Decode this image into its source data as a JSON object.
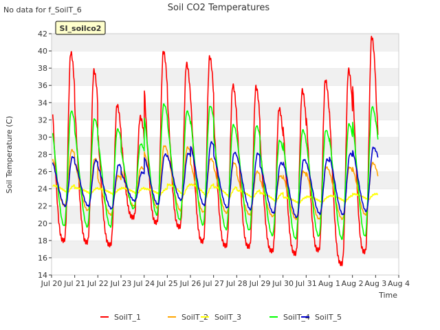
{
  "nodata_note": "No data for f_SoilT_6",
  "site_badge": "SI_soilco2",
  "chart_data": {
    "type": "line",
    "title": "Soil CO2 Temperatures",
    "xlabel": "Time",
    "ylabel": "Soil Temperature (C)",
    "ylim": [
      14,
      42
    ],
    "yticks": [
      14,
      16,
      18,
      20,
      22,
      24,
      26,
      28,
      30,
      32,
      34,
      36,
      38,
      40,
      42
    ],
    "xlim": [
      0,
      15
    ],
    "xticks": [
      0,
      1,
      2,
      3,
      4,
      5,
      6,
      7,
      8,
      9,
      10,
      11,
      12,
      13,
      14,
      15
    ],
    "xtick_labels": [
      "Jul 20",
      "Jul 21",
      "Jul 22",
      "Jul 23",
      "Jul 24",
      "Jul 25",
      "Jul 26",
      "Jul 27",
      "Jul 28",
      "Jul 29",
      "Jul 30",
      "Jul 31",
      "Aug 1",
      "Aug 2",
      "Aug 3",
      "Aug 4"
    ],
    "grid": "horizontal bands",
    "legend_position": "bottom",
    "series": [
      {
        "name": "SoilT_1",
        "color": "#ff0000",
        "min": [
          18.0,
          17.8,
          17.5,
          20.7,
          20.1,
          19.6,
          17.9,
          17.4,
          17.3,
          16.8,
          16.5,
          16.9,
          15.3,
          16.7,
          18.6
        ],
        "max": [
          39.8,
          37.7,
          33.7,
          32.3,
          39.9,
          38.5,
          39.3,
          36.0,
          35.8,
          33.3,
          35.4,
          36.6,
          37.8,
          41.6,
          40.0
        ]
      },
      {
        "name": "SoilT_2",
        "color": "#ffa500",
        "min": [
          22.0,
          21.5,
          21.0,
          22.0,
          21.8,
          21.5,
          21.3,
          21.2,
          21.0,
          20.8,
          20.5,
          20.5,
          20.5,
          21.0,
          21.0
        ],
        "max": [
          28.5,
          27.5,
          25.5,
          26.5,
          29.0,
          28.8,
          27.5,
          27.0,
          26.0,
          25.5,
          26.0,
          26.5,
          26.5,
          27.0,
          27.0
        ]
      },
      {
        "name": "SoilT_3",
        "color": "#ffff00",
        "min": [
          23.5,
          23.4,
          23.3,
          23.4,
          23.3,
          23.2,
          23.1,
          23.0,
          22.9,
          22.5,
          22.3,
          22.4,
          22.5,
          22.7,
          22.8
        ],
        "max": [
          24.4,
          24.1,
          24.0,
          24.1,
          24.0,
          24.5,
          24.5,
          24.2,
          23.8,
          23.5,
          23.0,
          23.1,
          23.2,
          23.4,
          23.4
        ]
      },
      {
        "name": "SoilT_4",
        "color": "#00ff00",
        "min": [
          19.7,
          19.6,
          19.6,
          21.7,
          21.0,
          20.4,
          19.8,
          19.3,
          19.2,
          18.6,
          18.2,
          18.5,
          18.2,
          18.5,
          20.4
        ],
        "max": [
          33.0,
          32.1,
          30.9,
          29.2,
          33.8,
          33.0,
          33.6,
          31.4,
          31.3,
          29.6,
          30.8,
          30.8,
          31.5,
          33.5,
          33.5
        ]
      },
      {
        "name": "SoilT_5",
        "color": "#0000cc",
        "min": [
          22.0,
          22.0,
          21.7,
          22.6,
          22.2,
          22.7,
          22.1,
          21.8,
          21.6,
          21.2,
          20.7,
          21.1,
          21.0,
          21.4,
          23.0
        ],
        "max": [
          27.7,
          27.3,
          26.8,
          25.9,
          28.0,
          28.1,
          29.4,
          28.2,
          28.1,
          27.0,
          27.4,
          27.4,
          28.1,
          28.8,
          28.8
        ]
      }
    ]
  }
}
